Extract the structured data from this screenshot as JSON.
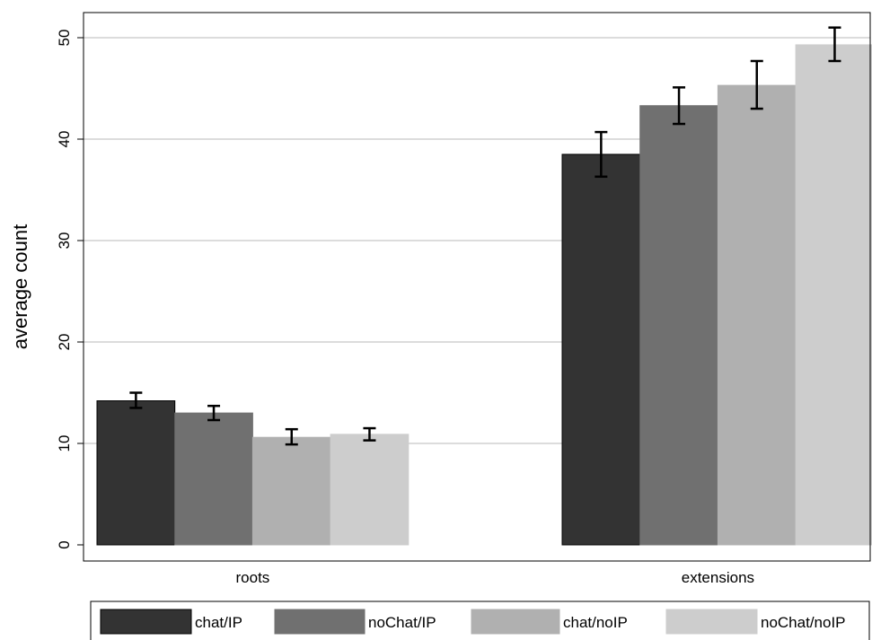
{
  "chart_data": {
    "type": "bar",
    "title": "",
    "xlabel": "",
    "ylabel": "average count",
    "ylim": [
      0,
      55
    ],
    "yticks": [
      0,
      10,
      20,
      30,
      40,
      50
    ],
    "grid": true,
    "legend_position": "bottom",
    "categories": [
      "roots",
      "extensions"
    ],
    "series": [
      {
        "name": "chat/IP",
        "color": "#333333",
        "values": [
          14.2,
          38.5
        ],
        "error_low": [
          13.5,
          36.3
        ],
        "error_high": [
          15.0,
          40.7
        ]
      },
      {
        "name": "noChat/IP",
        "color": "#707070",
        "values": [
          13.0,
          43.3
        ],
        "error_low": [
          12.3,
          41.5
        ],
        "error_high": [
          13.7,
          45.1
        ]
      },
      {
        "name": "chat/noIP",
        "color": "#b0b0b0",
        "values": [
          10.6,
          45.3
        ],
        "error_low": [
          9.9,
          43.0
        ],
        "error_high": [
          11.4,
          47.7
        ]
      },
      {
        "name": "noChat/noIP",
        "color": "#cdcdcd",
        "values": [
          10.9,
          49.3
        ],
        "error_low": [
          10.3,
          47.7
        ],
        "error_high": [
          11.5,
          51.0
        ]
      }
    ]
  }
}
